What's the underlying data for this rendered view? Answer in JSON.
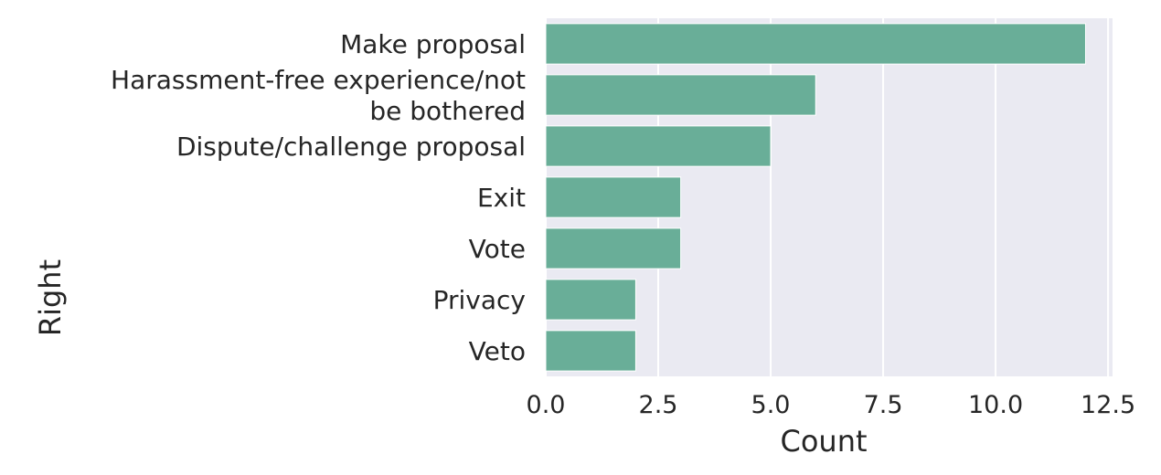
{
  "chart_data": {
    "type": "bar",
    "orientation": "horizontal",
    "categories": [
      "Make proposal",
      "Harassment-free experience/not be bothered",
      "Dispute/challenge proposal",
      "Exit",
      "Vote",
      "Privacy",
      "Veto"
    ],
    "category_lines": [
      [
        "Make proposal"
      ],
      [
        "Harassment-free experience/not",
        "be bothered"
      ],
      [
        "Dispute/challenge proposal"
      ],
      [
        "Exit"
      ],
      [
        "Vote"
      ],
      [
        "Privacy"
      ],
      [
        "Veto"
      ]
    ],
    "values": [
      12,
      6,
      5,
      3,
      3,
      2,
      2
    ],
    "xlabel": "Count",
    "ylabel": "Right",
    "xlim": [
      0,
      12.6
    ],
    "xticks": [
      0,
      2.5,
      5,
      7.5,
      10,
      12.5
    ],
    "xtick_labels": [
      "0.0",
      "2.5",
      "5.0",
      "7.5",
      "10.0",
      "12.5"
    ],
    "grid": true,
    "colors": {
      "bar": "#69ae98",
      "plot_background": "#eaeaf2",
      "grid": "#ffffff",
      "text": "#262626"
    }
  }
}
